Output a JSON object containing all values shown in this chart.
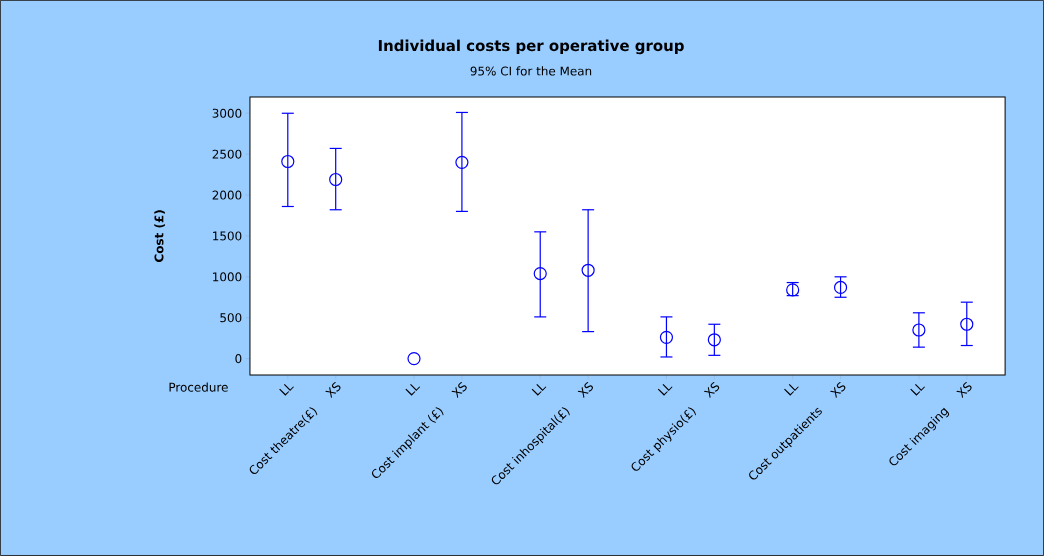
{
  "chart_data": {
    "type": "scatter",
    "title": "Individual costs per operative group",
    "subtitle": "95% CI for the Mean",
    "ylabel": "Cost (£)",
    "xlabel": "Procedure",
    "categories": [
      "LL",
      "XS",
      "LL",
      "XS",
      "LL",
      "XS",
      "LL",
      "XS",
      "LL",
      "XS",
      "LL",
      "XS"
    ],
    "values": [
      2410,
      2190,
      0,
      2400,
      1040,
      1080,
      260,
      230,
      840,
      870,
      350,
      420
    ],
    "errors": [
      [
        1860,
        3000
      ],
      [
        1820,
        2570
      ],
      null,
      [
        1800,
        3010
      ],
      [
        510,
        1550
      ],
      [
        330,
        1820
      ],
      [
        20,
        510
      ],
      [
        40,
        420
      ],
      [
        770,
        930
      ],
      [
        750,
        1000
      ],
      [
        140,
        560
      ],
      [
        160,
        690
      ]
    ],
    "color": "#0000ff",
    "marker": "circle",
    "ylim": [
      -200,
      3200
    ],
    "yticks": [
      0,
      500,
      1000,
      1500,
      2000,
      2500,
      3000
    ],
    "annotations": [
      "Cost theatre(£)",
      "Cost implant (£)",
      "Cost inhospital(£)",
      "Cost physio(£)",
      "Cost outpatients",
      "Cost imaging"
    ]
  }
}
